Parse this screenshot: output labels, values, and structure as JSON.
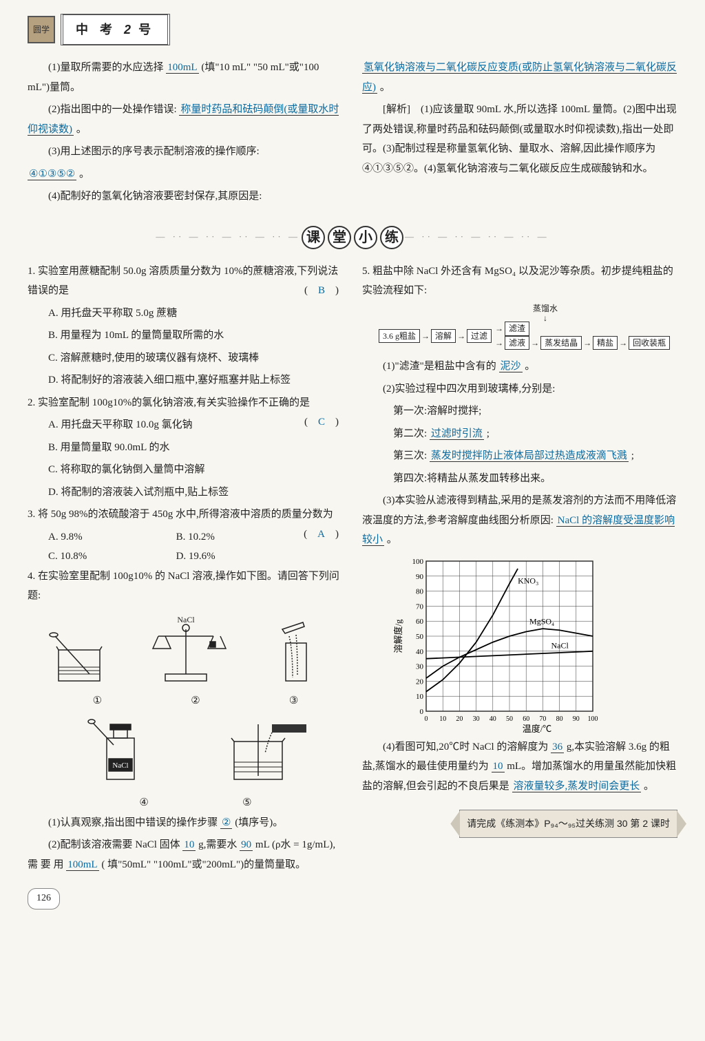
{
  "header": {
    "logo": "圆学",
    "title_prefix": "中 考",
    "title_num": "2",
    "title_suffix": "号"
  },
  "top": {
    "left": {
      "q1": "(1)量取所需要的水应选择",
      "q1_ans": "100mL",
      "q1_tail": "(填\"10 mL\" \"50 mL\"或\"100 mL\")量筒。",
      "q2": "(2)指出图中的一处操作错误:",
      "q2_ans": "称量时药品和砝码颠倒(或量取水时仰视读数)",
      "q2_tail": "。",
      "q3": "(3)用上述图示的序号表示配制溶液的操作顺序:",
      "q3_ans": "④①③⑤②",
      "q3_tail": "。",
      "q4": "(4)配制好的氢氧化钠溶液要密封保存,其原因是:"
    },
    "right": {
      "q4_ans": "氢氧化钠溶液与二氧化碳反应变质(或防止氢氧化钠溶液与二氧化碳反应)",
      "q4_tail": "。",
      "analysis_label": "[解析]",
      "analysis": "(1)应该量取 90mL 水,所以选择 100mL 量筒。(2)图中出现了两处错误,称量时药品和砝码颠倒(或量取水时仰视读数),指出一处即可。(3)配制过程是称量氢氧化钠、量取水、溶解,因此操作顺序为④①③⑤②。(4)氢氧化钠溶液与二氧化碳反应生成碳酸钠和水。"
    }
  },
  "section_title": [
    "课",
    "堂",
    "小",
    "练"
  ],
  "leftcol": {
    "q1": {
      "stem": "实验室用蔗糖配制 50.0g 溶质质量分数为 10%的蔗糖溶液,下列说法错误的是",
      "ans": "B",
      "A": "A. 用托盘天平称取 5.0g 蔗糖",
      "B": "B. 用量程为 10mL 的量筒量取所需的水",
      "C": "C. 溶解蔗糖时,使用的玻璃仪器有烧杯、玻璃棒",
      "D": "D. 将配制好的溶液装入细口瓶中,塞好瓶塞并贴上标签"
    },
    "q2": {
      "stem": "实验室配制 100g10%的氯化钠溶液,有关实验操作不正确的是",
      "ans": "C",
      "A": "A. 用托盘天平称取 10.0g 氯化钠",
      "B": "B. 用量筒量取 90.0mL 的水",
      "C": "C. 将称取的氯化钠倒入量筒中溶解",
      "D": "D. 将配制的溶液装入试剂瓶中,贴上标签"
    },
    "q3": {
      "stem": "将 50g 98%的浓硫酸溶于 450g 水中,所得溶液中溶质的质量分数为",
      "ans": "A",
      "A": "A. 9.8%",
      "B": "B. 10.2%",
      "C": "C. 10.8%",
      "D": "D. 19.6%"
    },
    "q4": {
      "stem": "在实验室里配制 100g10% 的 NaCl 溶液,操作如下图。请回答下列问题:",
      "labels": [
        "①",
        "②",
        "③",
        "④",
        "⑤"
      ],
      "sub1_a": "(1)认真观察,指出图中错误的操作步骤",
      "sub1_ans": "②",
      "sub1_b": "(填序号)。",
      "sub2_a": "(2)配制该溶液需要 NaCl 固体",
      "sub2_ans1": "10",
      "sub2_b": "g,需要水",
      "sub2_ans2": "90",
      "sub2_c": "mL (ρ水 = 1g/mL), 需 要 用",
      "sub2_ans3": "100mL",
      "sub2_d": "( 填\"50mL\" \"100mL\"或\"200mL\")的量筒量取。"
    }
  },
  "rightcol": {
    "q5": {
      "stem": "粗盐中除 NaCl 外还含有 MgSO₄ 以及泥沙等杂质。初步提纯粗盐的实验流程如下:",
      "flow": {
        "top_label": "蒸馏水",
        "b1": "3.6 g粗盐",
        "b2": "溶解",
        "b3": "过滤",
        "b4": "滤渣",
        "b5": "滤液",
        "b6": "蒸发结晶",
        "b7": "精盐",
        "b8": "回收装瓶"
      },
      "s1a": "(1)\"滤渣\"是粗盐中含有的",
      "s1ans": "泥沙",
      "s1b": "。",
      "s2": "(2)实验过程中四次用到玻璃棒,分别是:",
      "s2_1": "第一次:溶解时搅拌;",
      "s2_2a": "第二次:",
      "s2_2ans": "过滤时引流",
      "s2_2b": ";",
      "s2_3a": "第三次:",
      "s2_3ans": "蒸发时搅拌防止液体局部过热造成液滴飞溅",
      "s2_3b": ";",
      "s2_4": "第四次:将精盐从蒸发皿转移出来。",
      "s3a": "(3)本实验从滤液得到精盐,采用的是蒸发溶剂的方法而不用降低溶液温度的方法,参考溶解度曲线图分析原因:",
      "s3ans": "NaCl 的溶解度受温度影响较小",
      "s3b": "。",
      "s4a": "(4)看图可知,20℃时 NaCl 的溶解度为",
      "s4ans1": "36",
      "s4b": "g,本实验溶解 3.6g 的粗盐,蒸馏水的最佳使用量约为",
      "s4ans2": "10",
      "s4c": "mL。增加蒸馏水的用量虽然能加快粗盐的溶解,但会引起的不良后果是",
      "s4ans3": "溶液量较多,蒸发时间会更长",
      "s4d": "。"
    },
    "footer": "请完成《练测本》P₉₄～₉₅过关练测 30 第 2 课时"
  },
  "chart": {
    "ylabel": "溶解度/g",
    "xlabel": "温度/℃",
    "yticks": [
      0,
      10,
      20,
      30,
      40,
      50,
      60,
      70,
      80,
      90,
      100
    ],
    "xticks": [
      0,
      10,
      20,
      30,
      40,
      50,
      60,
      70,
      80,
      90,
      100
    ],
    "xticklabels": [
      "0",
      "10",
      "20",
      "30",
      "40",
      "50",
      "60",
      "70",
      "80",
      "90",
      "100"
    ],
    "series": {
      "KNO3": {
        "label": "KNO₃",
        "pts": [
          [
            0,
            13
          ],
          [
            10,
            21
          ],
          [
            20,
            32
          ],
          [
            30,
            46
          ],
          [
            40,
            64
          ],
          [
            50,
            85
          ],
          [
            55,
            95
          ]
        ]
      },
      "MgSO4": {
        "label": "MgSO₄",
        "pts": [
          [
            0,
            22
          ],
          [
            10,
            30
          ],
          [
            20,
            36
          ],
          [
            30,
            41
          ],
          [
            40,
            46
          ],
          [
            50,
            50
          ],
          [
            60,
            53
          ],
          [
            70,
            55
          ],
          [
            80,
            54
          ],
          [
            90,
            52
          ],
          [
            100,
            50
          ]
        ]
      },
      "NaCl": {
        "label": "NaCl",
        "pts": [
          [
            0,
            35
          ],
          [
            20,
            36
          ],
          [
            40,
            37
          ],
          [
            60,
            38
          ],
          [
            80,
            39
          ],
          [
            100,
            40
          ]
        ]
      }
    },
    "grid_color": "#333",
    "bg": "#fff"
  },
  "page_number": "126"
}
